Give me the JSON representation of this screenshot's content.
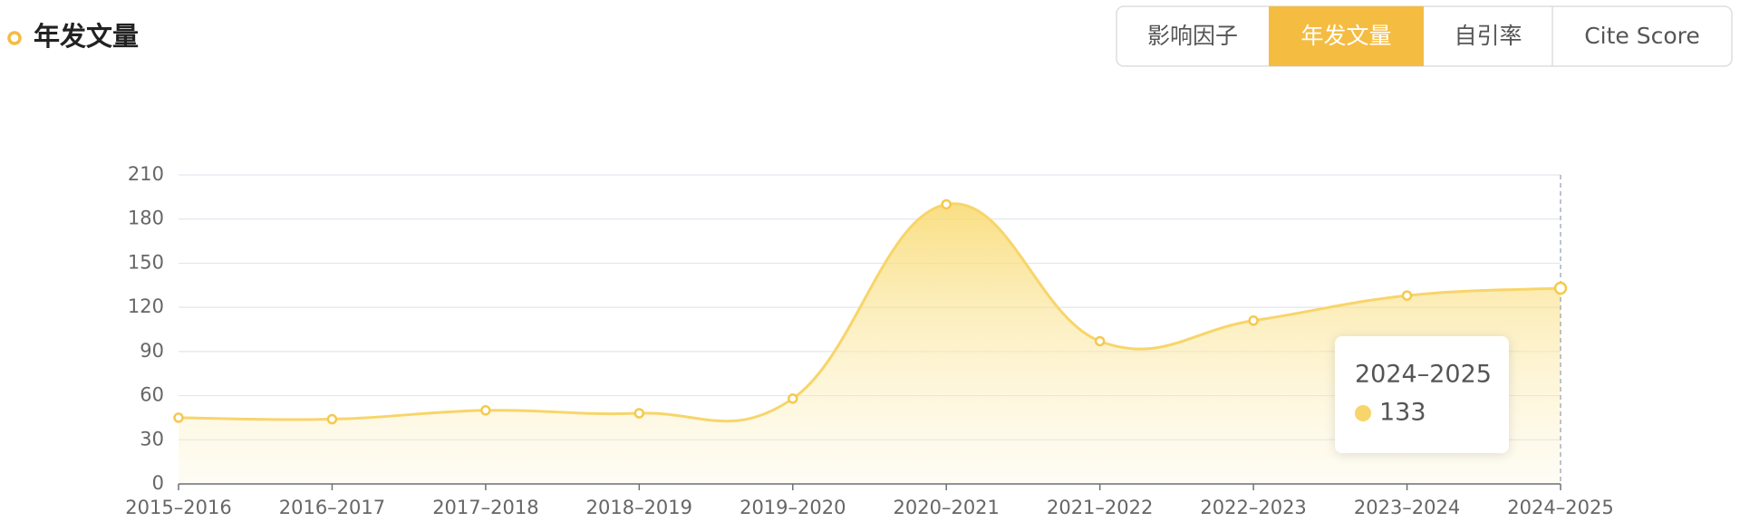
{
  "header": {
    "title": "年发文量"
  },
  "tabs": [
    {
      "label": "影响因子",
      "active": false
    },
    {
      "label": "年发文量",
      "active": true
    },
    {
      "label": "自引率",
      "active": false
    },
    {
      "label": "Cite Score",
      "active": false
    }
  ],
  "chart_data": {
    "type": "area",
    "categories": [
      "2015–2016",
      "2016–2017",
      "2017–2018",
      "2018–2019",
      "2019–2020",
      "2020–2021",
      "2021–2022",
      "2022–2023",
      "2023–2024",
      "2024–2025"
    ],
    "series": [
      {
        "name": "年发文量",
        "color": "#f8d56a",
        "values": [
          45,
          44,
          50,
          48,
          58,
          190,
          97,
          111,
          128,
          133
        ]
      }
    ],
    "ylim": [
      0,
      210
    ],
    "yticks": [
      0,
      30,
      60,
      90,
      120,
      150,
      180,
      210
    ],
    "grid": true
  }
}
